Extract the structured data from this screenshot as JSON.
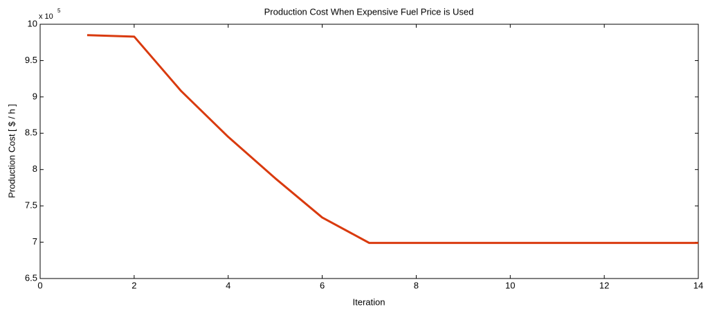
{
  "chart_data": {
    "type": "line",
    "title": "Production Cost When Expensive Fuel Price is Used",
    "x_label": "Iteration",
    "y_label": "Production Cost [ $ / h ]",
    "y_multiplier": "x 10",
    "y_exponent": "5",
    "x": [
      1,
      2,
      3,
      4,
      5,
      6,
      7,
      8,
      9,
      10,
      11,
      12,
      13,
      14
    ],
    "series": [
      {
        "name": "Production Cost",
        "color": "#d93a0e",
        "values": [
          9.85,
          9.83,
          9.08,
          8.45,
          7.88,
          7.34,
          6.99,
          6.99,
          6.99,
          6.99,
          6.99,
          6.99,
          6.99,
          6.99
        ]
      }
    ],
    "xlim": [
      0,
      14
    ],
    "xticks": [
      0,
      2,
      4,
      6,
      8,
      10,
      12,
      14
    ],
    "ylim": [
      6.5,
      10
    ],
    "yticks": [
      6.5,
      7,
      7.5,
      8,
      8.5,
      9,
      9.5,
      10
    ],
    "grid": false
  }
}
